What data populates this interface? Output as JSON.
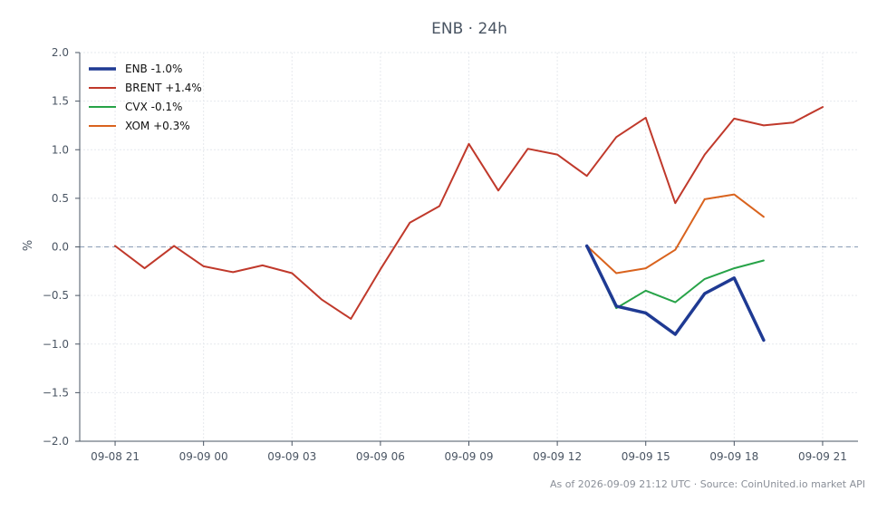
{
  "chart_data": {
    "type": "line",
    "title": "ENB · 24h",
    "ylabel": "%",
    "xlabel": "",
    "ylim": [
      -2.0,
      2.0
    ],
    "xlim": [
      -1.2,
      25.2
    ],
    "x_ticks": [
      0,
      3,
      6,
      9,
      12,
      15,
      18,
      21,
      24
    ],
    "x_tick_labels": [
      "09-08 21",
      "09-09 00",
      "09-09 03",
      "09-09 06",
      "09-09 09",
      "09-09 12",
      "09-09 15",
      "09-09 18",
      "09-09 21"
    ],
    "y_ticks": [
      -2.0,
      -1.5,
      -1.0,
      -0.5,
      0.0,
      0.5,
      1.0,
      1.5,
      2.0
    ],
    "y_tick_labels": [
      "−2.0",
      "−1.5",
      "−1.0",
      "−0.5",
      "0.0",
      "0.5",
      "1.0",
      "1.5",
      "2.0"
    ],
    "baseline": 0.0,
    "grid": true,
    "legend_position": "top-left",
    "series": [
      {
        "name": "ENB -1.0%",
        "color": "#1f3a93",
        "width": 3.5,
        "x": [
          16,
          17,
          18,
          19,
          20,
          21,
          22
        ],
        "values": [
          0.01,
          -0.61,
          -0.68,
          -0.9,
          -0.48,
          -0.32,
          -0.96
        ]
      },
      {
        "name": "BRENT +1.4%",
        "color": "#c0392b",
        "width": 2,
        "x": [
          0,
          1,
          2,
          3,
          4,
          5,
          6,
          7,
          8,
          9,
          10,
          11,
          12,
          13,
          14,
          15,
          16,
          17,
          18,
          19,
          20,
          21,
          22,
          23,
          24
        ],
        "values": [
          0.01,
          -0.22,
          0.01,
          -0.2,
          -0.26,
          -0.19,
          -0.27,
          -0.54,
          -0.74,
          -0.23,
          0.25,
          0.42,
          1.06,
          0.58,
          1.01,
          0.95,
          0.73,
          1.13,
          1.33,
          0.45,
          0.95,
          1.32,
          1.25,
          1.28,
          1.44
        ]
      },
      {
        "name": "CVX -0.1%",
        "color": "#27a348",
        "width": 2,
        "x": [
          16,
          17,
          18,
          19,
          20,
          21,
          22
        ],
        "values": [
          0.01,
          -0.63,
          -0.45,
          -0.57,
          -0.33,
          -0.22,
          -0.14
        ]
      },
      {
        "name": "XOM +0.3%",
        "color": "#d9631e",
        "width": 2,
        "x": [
          16,
          17,
          18,
          19,
          20,
          21,
          22
        ],
        "values": [
          0.01,
          -0.27,
          -0.22,
          -0.03,
          0.49,
          0.54,
          0.31
        ]
      }
    ]
  },
  "footer": "As of 2026-09-09 21:12 UTC · Source: CoinUnited.io market API"
}
